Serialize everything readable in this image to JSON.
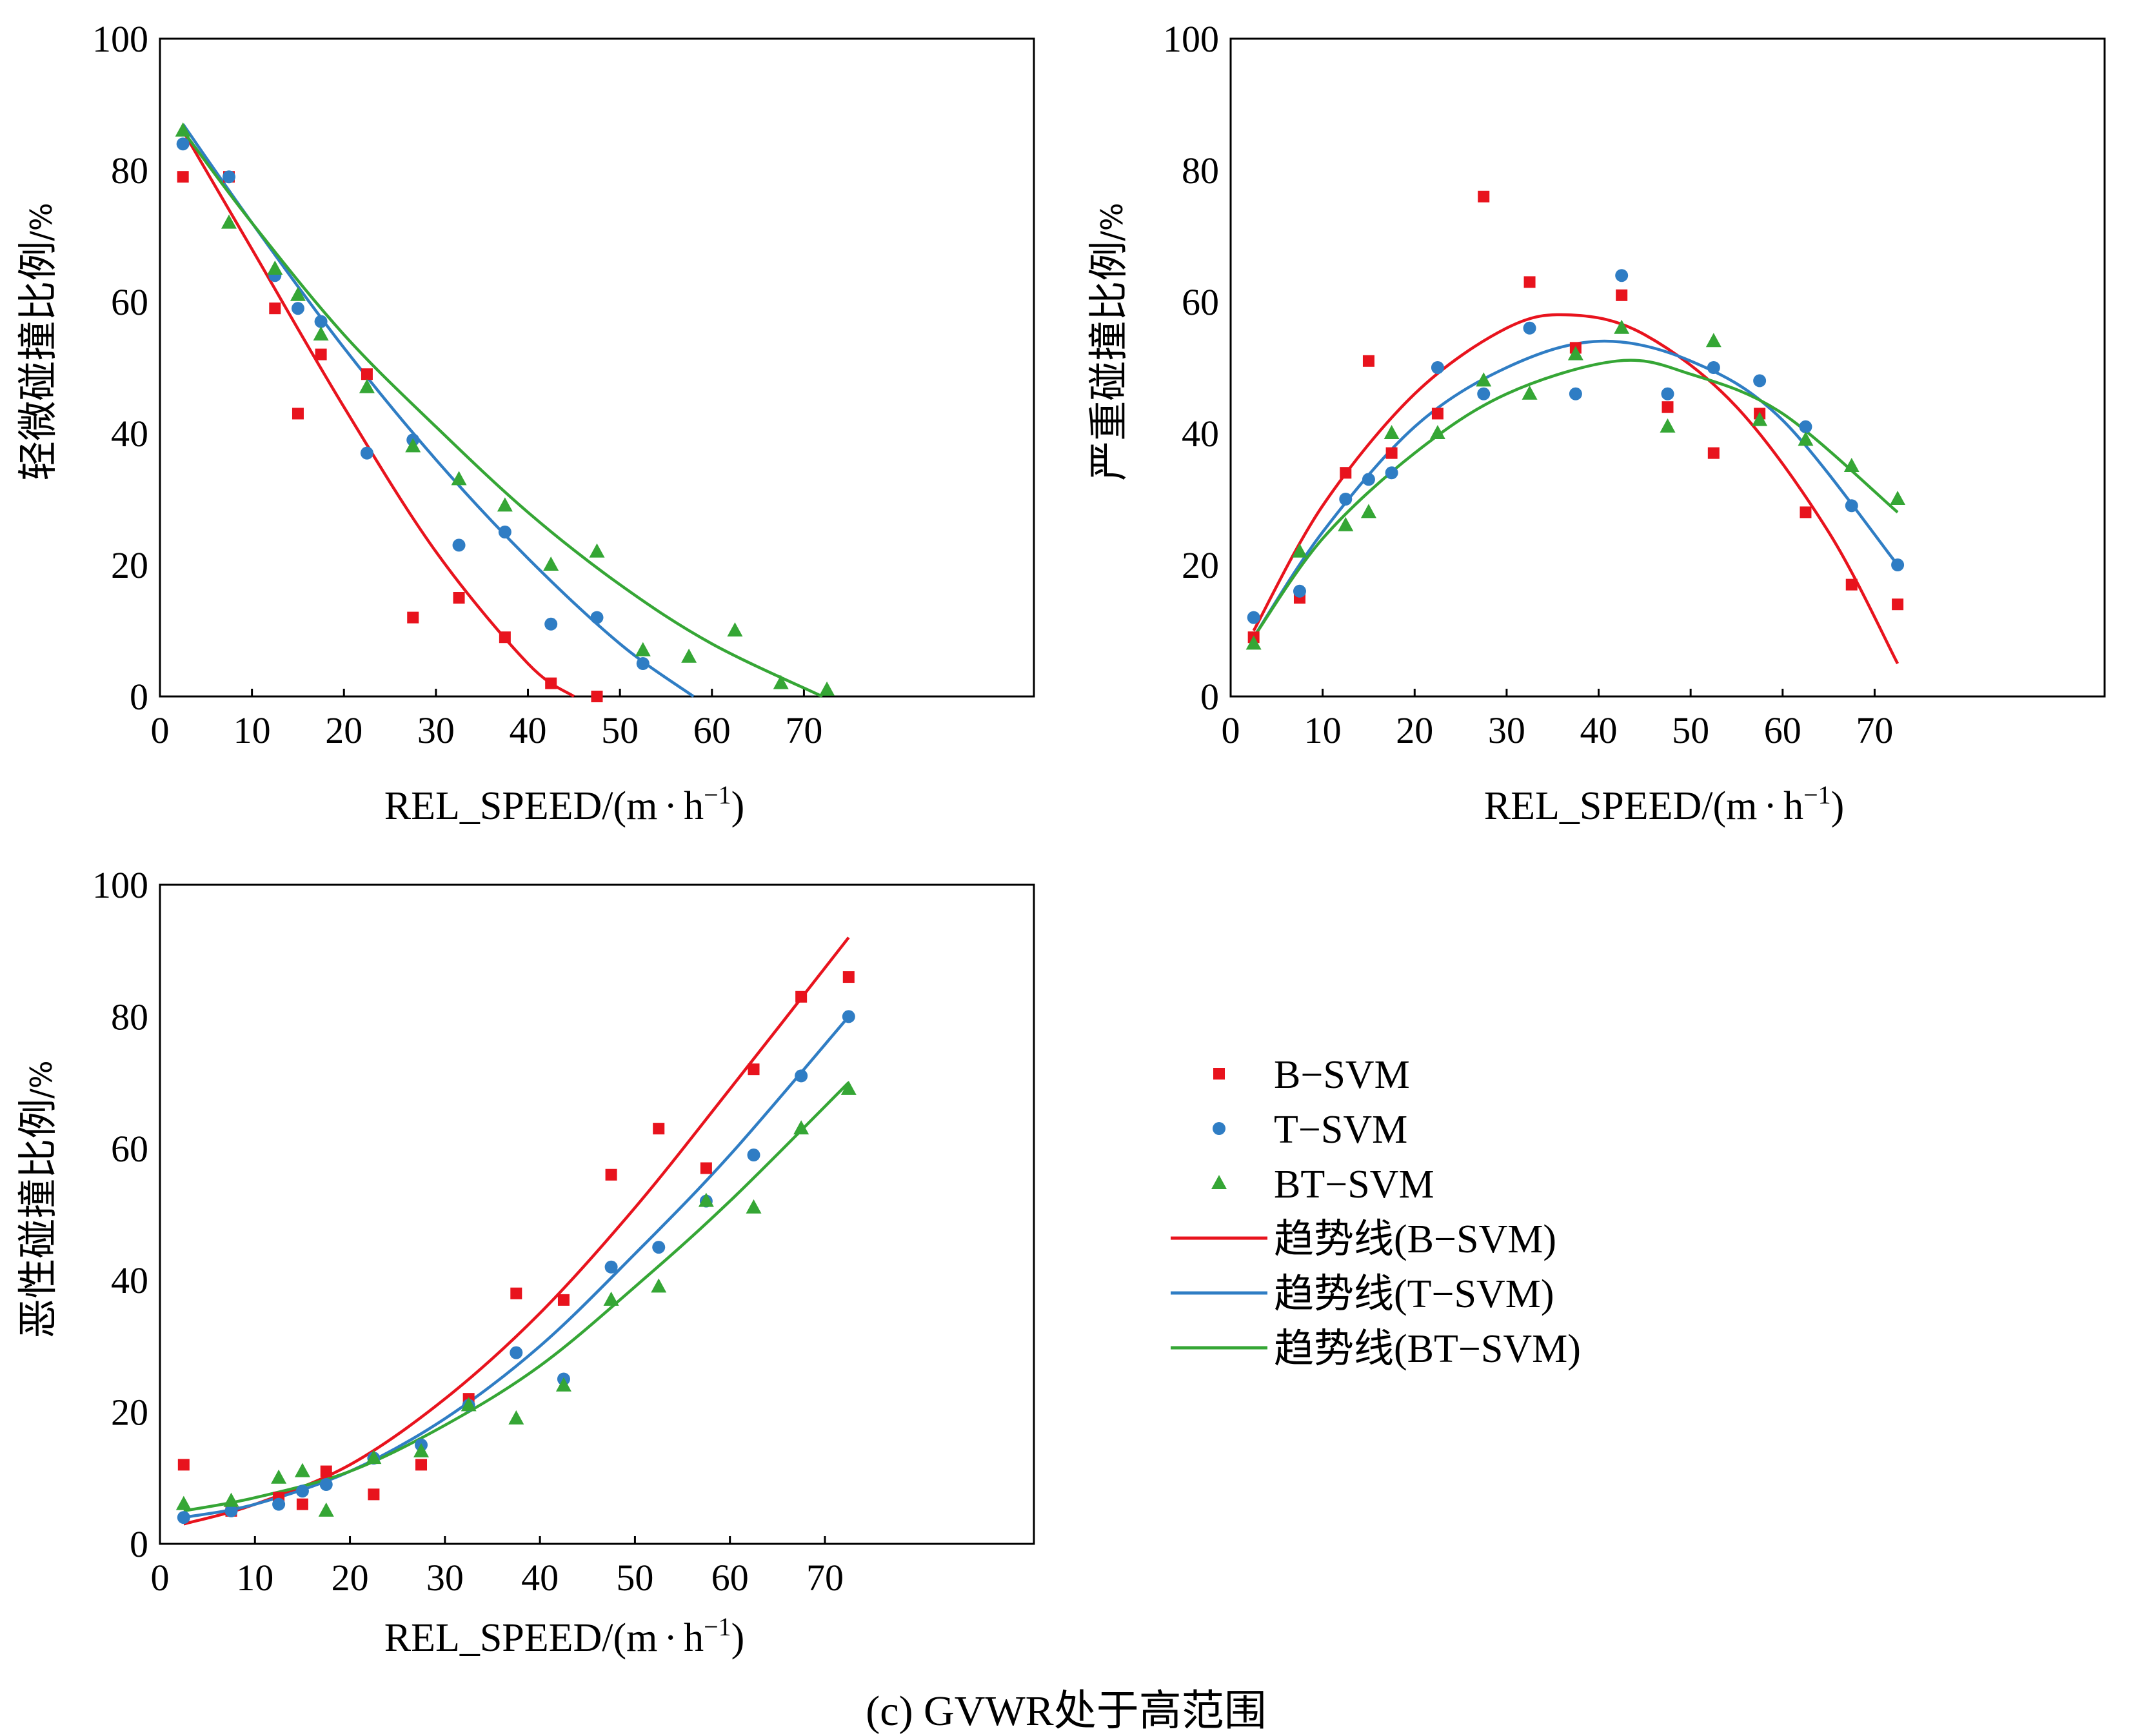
{
  "caption": "(c) GVWR处于高范围",
  "legend": {
    "items": [
      {
        "label": "B−SVM",
        "kind": "marker",
        "shape": "square",
        "color": "#e8131d"
      },
      {
        "label": "T−SVM",
        "kind": "marker",
        "shape": "circle",
        "color": "#2f7dc4"
      },
      {
        "label": "BT−SVM",
        "kind": "marker",
        "shape": "triangle",
        "color": "#35a635"
      },
      {
        "label": "趋势线(B−SVM)",
        "kind": "line",
        "color": "#e8131d"
      },
      {
        "label": "趋势线(T−SVM)",
        "kind": "line",
        "color": "#2f7dc4"
      },
      {
        "label": "趋势线(BT−SVM)",
        "kind": "line",
        "color": "#35a635"
      }
    ]
  },
  "chart_data": [
    {
      "type": "scatter",
      "id": "minor",
      "xlabel": "REL_SPEED/(m·h⁻¹)",
      "xlabel_main": "REL_SPEED/(m",
      "xlabel_dot": "·",
      "xlabel_h": "h",
      "xlabel_sup": "−1",
      "xlabel_close": ")",
      "ylabel": "轻微碰撞比例/%",
      "ylabel_main": "轻微碰撞比例",
      "ylabel_unit": "/%",
      "xlim": [
        0,
        95
      ],
      "ylim": [
        0,
        100
      ],
      "xticks": [
        "0",
        "10",
        "20",
        "30",
        "40",
        "50",
        "60",
        "70"
      ],
      "yticks": [
        "0",
        "20",
        "40",
        "60",
        "80",
        "100"
      ],
      "series": [
        {
          "name": "B−SVM",
          "marker": "square",
          "color": "#e8131d",
          "x": [
            2.5,
            7.5,
            12.5,
            15,
            17.5,
            22.5,
            27.5,
            32.5,
            37.5,
            42.5,
            47.5
          ],
          "y": [
            79,
            79,
            59,
            43,
            52,
            49,
            12,
            15,
            9,
            2,
            0
          ]
        },
        {
          "name": "T−SVM",
          "marker": "circle",
          "color": "#2f7dc4",
          "x": [
            2.5,
            7.5,
            12.5,
            15,
            17.5,
            22.5,
            27.5,
            32.5,
            37.5,
            42.5,
            47.5,
            52.5
          ],
          "y": [
            84,
            79,
            64,
            59,
            57,
            37,
            39,
            23,
            25,
            11,
            12,
            5
          ]
        },
        {
          "name": "BT−SVM",
          "marker": "triangle",
          "color": "#35a635",
          "x": [
            2.5,
            7.5,
            12.5,
            15,
            17.5,
            22.5,
            27.5,
            32.5,
            37.5,
            42.5,
            47.5,
            52.5,
            57.5,
            62.5,
            67.5,
            72.5
          ],
          "y": [
            86,
            72,
            65,
            61,
            55,
            47,
            38,
            33,
            29,
            20,
            22,
            7,
            6,
            10,
            2,
            1
          ]
        }
      ],
      "trendlines": [
        {
          "name": "趋势线(B−SVM)",
          "color": "#e8131d",
          "x": [
            2.5,
            10,
            20,
            30,
            40,
            45
          ],
          "y": [
            86,
            68,
            44,
            22,
            5,
            0
          ]
        },
        {
          "name": "趋势线(T−SVM)",
          "color": "#2f7dc4",
          "x": [
            2.5,
            10,
            20,
            30,
            40,
            50,
            58
          ],
          "y": [
            87,
            72,
            53,
            36,
            21,
            8,
            0
          ]
        },
        {
          "name": "趋势线(BT−SVM)",
          "color": "#35a635",
          "x": [
            2.5,
            10,
            20,
            30,
            40,
            50,
            60,
            72
          ],
          "y": [
            86,
            72,
            55,
            41,
            28,
            17,
            8,
            0
          ]
        }
      ]
    },
    {
      "type": "scatter",
      "id": "severe",
      "xlabel": "REL_SPEED/(m·h⁻¹)",
      "xlabel_main": "REL_SPEED/(m",
      "xlabel_dot": "·",
      "xlabel_h": "h",
      "xlabel_sup": "−1",
      "xlabel_close": ")",
      "ylabel": "严重碰撞比例/%",
      "ylabel_main": "严重碰撞比例",
      "ylabel_unit": "/%",
      "xlim": [
        0,
        95
      ],
      "ylim": [
        0,
        100
      ],
      "xticks": [
        "0",
        "10",
        "20",
        "30",
        "40",
        "50",
        "60",
        "70"
      ],
      "yticks": [
        "0",
        "20",
        "40",
        "60",
        "80",
        "100"
      ],
      "series": [
        {
          "name": "B−SVM",
          "marker": "square",
          "color": "#e8131d",
          "x": [
            2.5,
            7.5,
            12.5,
            15,
            17.5,
            22.5,
            27.5,
            32.5,
            37.5,
            42.5,
            47.5,
            52.5,
            57.5,
            62.5,
            67.5,
            72.5
          ],
          "y": [
            9,
            15,
            34,
            51,
            37,
            43,
            76,
            63,
            53,
            61,
            44,
            37,
            43,
            28,
            17,
            14
          ]
        },
        {
          "name": "T−SVM",
          "marker": "circle",
          "color": "#2f7dc4",
          "x": [
            2.5,
            7.5,
            12.5,
            15,
            17.5,
            22.5,
            27.5,
            32.5,
            37.5,
            42.5,
            47.5,
            52.5,
            57.5,
            62.5,
            67.5,
            72.5
          ],
          "y": [
            12,
            16,
            30,
            33,
            34,
            50,
            46,
            56,
            46,
            64,
            46,
            50,
            48,
            41,
            29,
            20
          ]
        },
        {
          "name": "BT−SVM",
          "marker": "triangle",
          "color": "#35a635",
          "x": [
            2.5,
            7.5,
            12.5,
            15,
            17.5,
            22.5,
            27.5,
            32.5,
            37.5,
            42.5,
            47.5,
            52.5,
            57.5,
            62.5,
            67.5,
            72.5
          ],
          "y": [
            8,
            22,
            26,
            28,
            40,
            40,
            48,
            46,
            52,
            56,
            41,
            54,
            42,
            39,
            35,
            30
          ]
        }
      ],
      "trendlines": [
        {
          "name": "趋势线(B−SVM)",
          "color": "#e8131d",
          "x": [
            2.5,
            10,
            20,
            30,
            37,
            45,
            55,
            65,
            72.5
          ],
          "y": [
            10,
            29,
            46,
            56,
            58,
            55,
            44,
            25,
            5
          ]
        },
        {
          "name": "趋势线(T−SVM)",
          "color": "#2f7dc4",
          "x": [
            2.5,
            10,
            20,
            30,
            40,
            50,
            60,
            72.5
          ],
          "y": [
            9,
            25,
            41,
            50,
            54,
            51,
            42,
            20
          ]
        },
        {
          "name": "趋势线(BT−SVM)",
          "color": "#35a635",
          "x": [
            2.5,
            10,
            20,
            30,
            42,
            50,
            60,
            72.5
          ],
          "y": [
            9,
            24,
            37,
            46,
            51,
            49,
            43,
            28
          ]
        }
      ]
    },
    {
      "type": "scatter",
      "id": "malignant",
      "xlabel": "REL_SPEED/(m·h⁻¹)",
      "xlabel_main": "REL_SPEED/(m",
      "xlabel_dot": "·",
      "xlabel_h": "h",
      "xlabel_sup": "−1",
      "xlabel_close": ")",
      "ylabel": "恶性碰撞比例/%",
      "ylabel_main": "恶性碰撞比例",
      "ylabel_unit": "/%",
      "xlim": [
        0,
        92
      ],
      "ylim": [
        0,
        100
      ],
      "xticks": [
        "0",
        "10",
        "20",
        "30",
        "40",
        "50",
        "60",
        "70"
      ],
      "yticks": [
        "0",
        "20",
        "40",
        "60",
        "80",
        "100"
      ],
      "series": [
        {
          "name": "B−SVM",
          "marker": "square",
          "color": "#e8131d",
          "x": [
            2.5,
            7.5,
            12.5,
            15,
            17.5,
            22.5,
            27.5,
            32.5,
            37.5,
            42.5,
            47.5,
            52.5,
            57.5,
            62.5,
            67.5,
            72.5
          ],
          "y": [
            12,
            5,
            7,
            6,
            11,
            7.5,
            12,
            22,
            38,
            37,
            56,
            63,
            57,
            72,
            83,
            86
          ]
        },
        {
          "name": "T−SVM",
          "marker": "circle",
          "color": "#2f7dc4",
          "x": [
            2.5,
            7.5,
            12.5,
            15,
            17.5,
            22.5,
            27.5,
            32.5,
            37.5,
            42.5,
            47.5,
            52.5,
            57.5,
            62.5,
            67.5,
            72.5
          ],
          "y": [
            4,
            5,
            6,
            8,
            9,
            13,
            15,
            21,
            29,
            25,
            42,
            45,
            52,
            59,
            71,
            80
          ]
        },
        {
          "name": "BT−SVM",
          "marker": "triangle",
          "color": "#35a635",
          "x": [
            2.5,
            7.5,
            12.5,
            15,
            17.5,
            22.5,
            27.5,
            32.5,
            37.5,
            42.5,
            47.5,
            52.5,
            57.5,
            62.5,
            67.5,
            72.5
          ],
          "y": [
            6,
            6.5,
            10,
            11,
            5,
            13,
            14,
            21,
            19,
            24,
            37,
            39,
            52,
            51,
            63,
            69
          ]
        }
      ],
      "trendlines": [
        {
          "name": "趋势线(B−SVM)",
          "color": "#e8131d",
          "x": [
            2.5,
            10,
            20,
            30,
            40,
            50,
            60,
            72.5
          ],
          "y": [
            3,
            6,
            12,
            22,
            35,
            51,
            69,
            92
          ]
        },
        {
          "name": "趋势线(T−SVM)",
          "color": "#2f7dc4",
          "x": [
            2.5,
            10,
            20,
            30,
            40,
            50,
            60,
            72.5
          ],
          "y": [
            4,
            6,
            11,
            19,
            30,
            44,
            59,
            80
          ]
        },
        {
          "name": "趋势线(BT−SVM)",
          "color": "#35a635",
          "x": [
            2.5,
            10,
            20,
            30,
            40,
            50,
            60,
            72.5
          ],
          "y": [
            5,
            7,
            11,
            18,
            27,
            39,
            52,
            70
          ]
        }
      ]
    }
  ]
}
